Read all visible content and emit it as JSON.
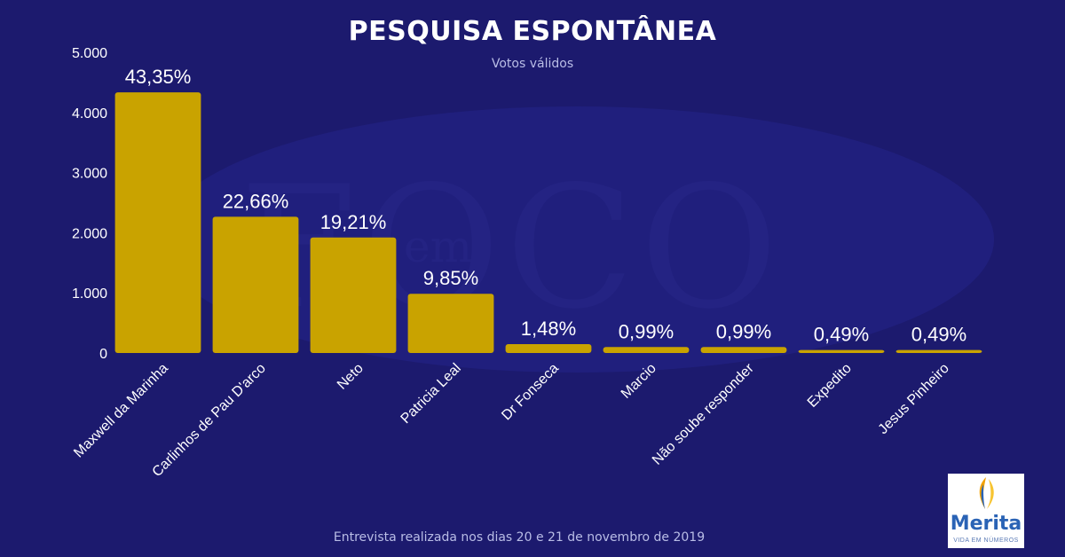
{
  "title": "PESQUISA ESPONTÂNEA",
  "subtitle": "Votos válidos",
  "footer": "Entrevista realizada nos dias 20 e 21 de novembro de 2019",
  "watermark": "FOCO",
  "watermark_small": "em",
  "logo": {
    "name": "Merita",
    "tagline": "VIDA EM NÚMEROS"
  },
  "colors": {
    "background": "#1c1a6e",
    "bar": "#c9a300",
    "text": "#ffffff"
  },
  "chart_data": {
    "type": "bar",
    "categories": [
      "Maxwell da Marinha",
      "Carlinhos de Pau D'arco",
      "Neto",
      "Patricia Leal",
      "Dr Fonseca",
      "Marcio",
      "Não soube responder",
      "Expedito",
      "Jesus Pinheiro"
    ],
    "values": [
      4335,
      2266,
      1921,
      985,
      148,
      99,
      99,
      49,
      49
    ],
    "labels": [
      "43,35%",
      "22,66%",
      "19,21%",
      "9,85%",
      "1,48%",
      "0,99%",
      "0,99%",
      "0,49%",
      "0,49%"
    ],
    "ylim": [
      0,
      5000
    ],
    "yticks": [
      0,
      1000,
      2000,
      3000,
      4000,
      5000
    ],
    "ytick_labels": [
      "0",
      "1.000",
      "2.000",
      "3.000",
      "4.000",
      "5.000"
    ],
    "grid": false,
    "legend": "none"
  }
}
